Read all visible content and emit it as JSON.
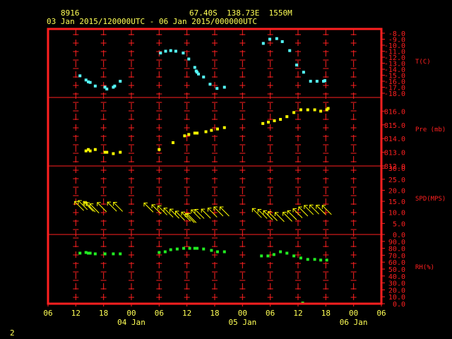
{
  "header": {
    "station_id": "8916",
    "location": "67.40S  138.73E  1550M",
    "period": "03 Jan 2015/120000UTC - 06 Jan 2015/000000UTC"
  },
  "footer": {
    "page_number": "2"
  },
  "colors": {
    "frame": "#ff2020",
    "axis_text": "#ffff55",
    "temp": "#55ffff",
    "pressure": "#ffff00",
    "wind": "#ffff00",
    "rh": "#22ee22",
    "label": "#ff2020"
  },
  "chart_data": {
    "type": "scatter",
    "x_ticks": [
      "06",
      "12",
      "18",
      "00",
      "06",
      "12",
      "18",
      "00",
      "06",
      "12",
      "18",
      "00",
      "06"
    ],
    "date_labels": [
      "04 Jan",
      "05 Jan",
      "06 Jan"
    ],
    "xlim": [
      0,
      72
    ],
    "panels": [
      {
        "name": "T(C)",
        "ylim": [
          -18,
          -8
        ],
        "ticks": [
          "-8.0",
          "-9.0",
          "-10.0",
          "-11.0",
          "-12.0",
          "-13.0",
          "-14.0",
          "-15.0",
          "-16.0",
          "-17.0",
          "-18.0"
        ],
        "tick_values": [
          -8,
          -9,
          -10,
          -11,
          -12,
          -13,
          -14,
          -15,
          -16,
          -17,
          -18
        ],
        "points": [
          [
            6.9,
            -15.1
          ],
          [
            8.2,
            -15.8
          ],
          [
            8.7,
            -16.1
          ],
          [
            9.1,
            -16.2
          ],
          [
            10.2,
            -16.8
          ],
          [
            12.3,
            -17.0
          ],
          [
            12.7,
            -17.3
          ],
          [
            14.1,
            -17.0
          ],
          [
            14.4,
            -16.8
          ],
          [
            15.6,
            -16.0
          ],
          [
            24.3,
            -11.3
          ],
          [
            25.4,
            -11.0
          ],
          [
            26.5,
            -10.9
          ],
          [
            27.6,
            -11.0
          ],
          [
            29.2,
            -11.3
          ],
          [
            30.4,
            -12.3
          ],
          [
            31.7,
            -13.7
          ],
          [
            32.0,
            -14.3
          ],
          [
            32.2,
            -14.5
          ],
          [
            32.5,
            -14.8
          ],
          [
            33.6,
            -15.3
          ],
          [
            35.0,
            -16.5
          ],
          [
            36.5,
            -17.2
          ],
          [
            38.1,
            -17.0
          ],
          [
            46.5,
            -9.7
          ],
          [
            47.9,
            -9.0
          ],
          [
            49.4,
            -8.9
          ],
          [
            50.6,
            -9.4
          ],
          [
            52.2,
            -10.9
          ],
          [
            53.7,
            -13.3
          ],
          [
            55.2,
            -14.5
          ],
          [
            56.7,
            -16.0
          ],
          [
            58.1,
            -16.0
          ],
          [
            59.5,
            -16.0
          ],
          [
            59.8,
            -15.9
          ]
        ]
      },
      {
        "name": "Pre (mb)",
        "ylim": [
          812,
          817
        ],
        "ticks": [
          "816.0",
          "815.0",
          "814.0",
          "813.0",
          "812.0"
        ],
        "tick_values": [
          816,
          815,
          814,
          813,
          812
        ],
        "points": [
          [
            8.2,
            813.1
          ],
          [
            8.7,
            813.2
          ],
          [
            9.1,
            813.1
          ],
          [
            10.2,
            813.2
          ],
          [
            12.3,
            813.0
          ],
          [
            12.7,
            813.0
          ],
          [
            14.1,
            812.9
          ],
          [
            15.6,
            813.0
          ],
          [
            24.0,
            813.2
          ],
          [
            27.0,
            813.7
          ],
          [
            29.5,
            814.2
          ],
          [
            30.4,
            814.3
          ],
          [
            31.7,
            814.4
          ],
          [
            32.2,
            814.4
          ],
          [
            34.1,
            814.5
          ],
          [
            35.3,
            814.6
          ],
          [
            36.6,
            814.7
          ],
          [
            38.1,
            814.8
          ],
          [
            46.4,
            815.1
          ],
          [
            47.6,
            815.2
          ],
          [
            48.9,
            815.3
          ],
          [
            50.2,
            815.4
          ],
          [
            51.6,
            815.6
          ],
          [
            53.1,
            815.9
          ],
          [
            54.6,
            816.1
          ],
          [
            56.1,
            816.1
          ],
          [
            57.6,
            816.1
          ],
          [
            58.9,
            816.0
          ],
          [
            60.2,
            816.1
          ],
          [
            60.5,
            816.2
          ]
        ]
      },
      {
        "name": "SPD(MPS)",
        "ylim": [
          0,
          31
        ],
        "ticks": [
          "30.0",
          "25.0",
          "20.0",
          "15.0",
          "10.0",
          "5.0",
          "0.0"
        ],
        "tick_values": [
          30,
          25,
          20,
          15,
          10,
          5,
          0
        ],
        "points": [
          [
            6.5,
            14.0
          ],
          [
            7.3,
            14.4
          ],
          [
            8.4,
            14.0
          ],
          [
            8.6,
            13.6
          ],
          [
            9.0,
            13.4
          ],
          [
            9.8,
            12.9
          ],
          [
            11.4,
            13.5
          ],
          [
            13.6,
            13.7
          ],
          [
            14.9,
            13.6
          ],
          [
            21.5,
            13.3
          ],
          [
            23.2,
            12.5
          ],
          [
            24.5,
            12.0
          ],
          [
            25.8,
            11.0
          ],
          [
            27.1,
            10.5
          ],
          [
            28.3,
            9.6
          ],
          [
            29.6,
            9.2
          ],
          [
            30.4,
            8.5
          ],
          [
            30.8,
            8.5
          ],
          [
            31.7,
            10.2
          ],
          [
            32.5,
            10.4
          ],
          [
            33.9,
            10.5
          ],
          [
            35.3,
            11.0
          ],
          [
            36.6,
            11.5
          ],
          [
            37.9,
            11.5
          ],
          [
            44.9,
            10.8
          ],
          [
            46.1,
            10.4
          ],
          [
            47.3,
            9.8
          ],
          [
            48.3,
            9.4
          ],
          [
            49.8,
            9.0
          ],
          [
            51.5,
            9.1
          ],
          [
            52.5,
            9.8
          ],
          [
            53.7,
            10.7
          ],
          [
            54.9,
            11.5
          ],
          [
            56.1,
            12.2
          ],
          [
            57.3,
            12.4
          ],
          [
            58.7,
            12.3
          ],
          [
            60.0,
            12.2
          ]
        ]
      },
      {
        "name": "RH(%)",
        "ylim": [
          0,
          100
        ],
        "ticks": [
          "90.0",
          "80.0",
          "70.0",
          "60.0",
          "50.0",
          "40.0",
          "30.0",
          "20.0",
          "10.0",
          "0.0"
        ],
        "tick_values": [
          90,
          80,
          70,
          60,
          50,
          40,
          30,
          20,
          10,
          0
        ],
        "points": [
          [
            6.9,
            73
          ],
          [
            8.2,
            74
          ],
          [
            8.7,
            73
          ],
          [
            9.1,
            73
          ],
          [
            10.2,
            72
          ],
          [
            12.3,
            72
          ],
          [
            14.1,
            72
          ],
          [
            15.6,
            72
          ],
          [
            24.0,
            74
          ],
          [
            25.3,
            75
          ],
          [
            26.5,
            78
          ],
          [
            27.9,
            79
          ],
          [
            29.3,
            80
          ],
          [
            30.6,
            80
          ],
          [
            31.7,
            80
          ],
          [
            32.2,
            80
          ],
          [
            33.6,
            79
          ],
          [
            35.3,
            77
          ],
          [
            36.6,
            75
          ],
          [
            38.1,
            75
          ],
          [
            46.1,
            69
          ],
          [
            47.5,
            69
          ],
          [
            48.8,
            71
          ],
          [
            50.2,
            75
          ],
          [
            51.6,
            73
          ],
          [
            53.1,
            69
          ],
          [
            54.6,
            66
          ],
          [
            56.1,
            64
          ],
          [
            57.6,
            64
          ],
          [
            58.9,
            63
          ],
          [
            60.2,
            63
          ],
          [
            55.0,
            1
          ]
        ]
      }
    ]
  }
}
